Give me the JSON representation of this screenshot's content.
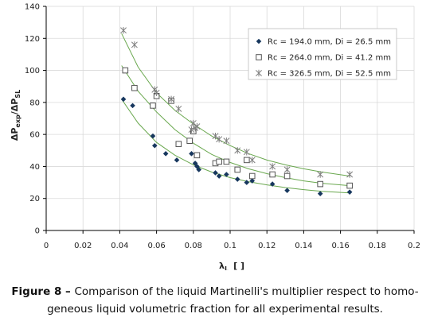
{
  "caption": {
    "figure_label": "Figure 8 – ",
    "line1": "Comparison of the liquid Martinelli's multiplier respect to homo-",
    "line2": "geneous liquid volumetric fraction for all experimental results."
  },
  "chart_data": {
    "type": "scatter",
    "xlabel_main": "λ",
    "xlabel_sub": "L",
    "xlabel_unit": "[ ]",
    "ylabel_parts": [
      "ΔP",
      "exp",
      "/ΔP",
      "SL"
    ],
    "xlim": [
      0,
      0.2
    ],
    "ylim": [
      0,
      140
    ],
    "xticks": [
      "0",
      "0.02",
      "0.04",
      "0.06",
      "0.08",
      "0.1",
      "0.12",
      "0.14",
      "0.16",
      "0.18",
      "0.2"
    ],
    "yticks": [
      "0",
      "20",
      "40",
      "60",
      "80",
      "100",
      "120",
      "140"
    ],
    "xtick_values": [
      0,
      0.02,
      0.04,
      0.06,
      0.08,
      0.1,
      0.12,
      0.14,
      0.16,
      0.18,
      0.2
    ],
    "ytick_values": [
      0,
      20,
      40,
      60,
      80,
      100,
      120,
      140
    ],
    "grid": true,
    "legend_position": "top-right",
    "trendline_color": "#6aa84f",
    "series": [
      {
        "name": "Rc = 194.0 mm, Di = 26.5 mm",
        "marker": "diamond",
        "color": "#17375e",
        "x": [
          0.042,
          0.047,
          0.058,
          0.059,
          0.065,
          0.071,
          0.079,
          0.081,
          0.082,
          0.083,
          0.092,
          0.094,
          0.098,
          0.104,
          0.109,
          0.112,
          0.123,
          0.131,
          0.149,
          0.165
        ],
        "y": [
          82,
          78,
          59,
          53,
          48,
          44,
          48,
          42,
          40,
          38,
          36,
          34,
          35,
          32,
          30,
          31,
          29,
          25,
          23,
          24
        ],
        "trend_x": [
          0.041,
          0.05,
          0.06,
          0.07,
          0.08,
          0.09,
          0.1,
          0.11,
          0.12,
          0.13,
          0.14,
          0.15,
          0.165
        ],
        "trend_y": [
          82,
          67,
          55,
          47,
          41,
          36.5,
          33,
          30.5,
          28.5,
          26.8,
          25.5,
          24.5,
          23.5
        ]
      },
      {
        "name": "Rc = 264.0 mm, Di = 41.2 mm",
        "marker": "square",
        "color": "#555555",
        "x": [
          0.043,
          0.048,
          0.058,
          0.06,
          0.068,
          0.072,
          0.078,
          0.08,
          0.082,
          0.092,
          0.094,
          0.098,
          0.104,
          0.109,
          0.112,
          0.123,
          0.131,
          0.149,
          0.165
        ],
        "y": [
          100,
          89,
          78,
          84,
          81,
          54,
          56,
          62,
          47,
          42,
          43,
          43,
          38,
          44,
          34,
          35,
          34,
          29,
          28
        ],
        "trend_x": [
          0.041,
          0.05,
          0.06,
          0.07,
          0.08,
          0.09,
          0.1,
          0.11,
          0.12,
          0.13,
          0.14,
          0.15,
          0.165
        ],
        "trend_y": [
          103,
          87,
          74,
          63,
          54.5,
          47.5,
          42.5,
          38.5,
          35.5,
          33,
          31,
          29.5,
          28
        ]
      },
      {
        "name": "Rc = 326.5 mm, Di = 52.5 mm",
        "marker": "asterisk",
        "color": "#7f7f7f",
        "x": [
          0.042,
          0.048,
          0.059,
          0.06,
          0.068,
          0.072,
          0.079,
          0.08,
          0.081,
          0.082,
          0.092,
          0.094,
          0.098,
          0.104,
          0.109,
          0.112,
          0.123,
          0.131,
          0.149,
          0.165
        ],
        "y": [
          125,
          116,
          88,
          86,
          82,
          76,
          63,
          67,
          64,
          65,
          59,
          57,
          56,
          50,
          49,
          44,
          40,
          38,
          35,
          35
        ],
        "trend_x": [
          0.041,
          0.05,
          0.06,
          0.07,
          0.08,
          0.09,
          0.1,
          0.11,
          0.12,
          0.13,
          0.14,
          0.15,
          0.165
        ],
        "trend_y": [
          123,
          102,
          86,
          75,
          66.5,
          59,
          53,
          48,
          44,
          41,
          38.5,
          36.5,
          34
        ]
      }
    ]
  }
}
